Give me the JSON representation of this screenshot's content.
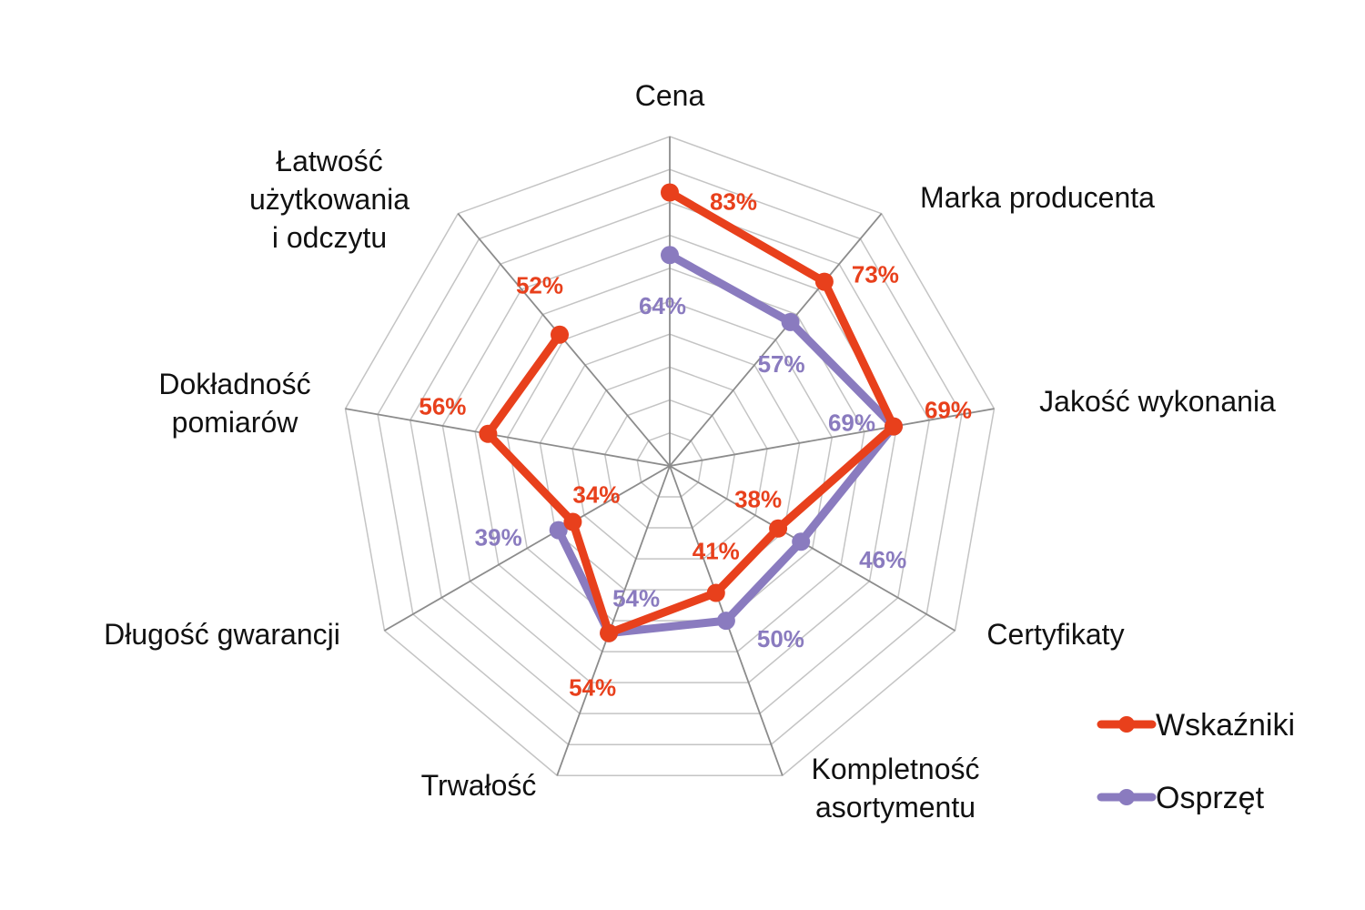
{
  "chart_data": {
    "type": "radar",
    "categories": [
      "Cena",
      "Marka producenta",
      "Jakość wykonania",
      "Certyfikaty",
      "Kompletność asortymentu",
      "Trwałość",
      "Długość gwarancji",
      "Dokładność pomiarów",
      "Łatwość użytkowania i odczytu"
    ],
    "category_lines": [
      [
        "Cena"
      ],
      [
        "Marka producenta"
      ],
      [
        "Jakość wykonania"
      ],
      [
        "Certyfikaty"
      ],
      [
        "Kompletność",
        "asortymentu"
      ],
      [
        "Trwałość"
      ],
      [
        "Długość gwarancji"
      ],
      [
        "Dokładność",
        "pomiarów"
      ],
      [
        "Łatwość",
        "użytkowania",
        "i odczytu"
      ]
    ],
    "series": [
      {
        "name": "Wskaźniki",
        "color": "#e8401c",
        "values": [
          83,
          73,
          69,
          38,
          41,
          54,
          34,
          56,
          52
        ],
        "labels": [
          "83%",
          "73%",
          "69%",
          "38%",
          "41%",
          "54%",
          "34%",
          "56%",
          "52%"
        ]
      },
      {
        "name": "Osprzęt",
        "color": "#8a7bbf",
        "values": [
          64,
          57,
          69,
          46,
          50,
          54,
          39,
          null,
          null
        ],
        "labels": [
          "64%",
          "57%",
          "69%",
          "46%",
          "50%",
          "54%",
          "39%",
          null,
          null
        ]
      }
    ],
    "rlim": [
      0,
      100
    ],
    "grid": true,
    "legend_position": "bottom-right"
  }
}
